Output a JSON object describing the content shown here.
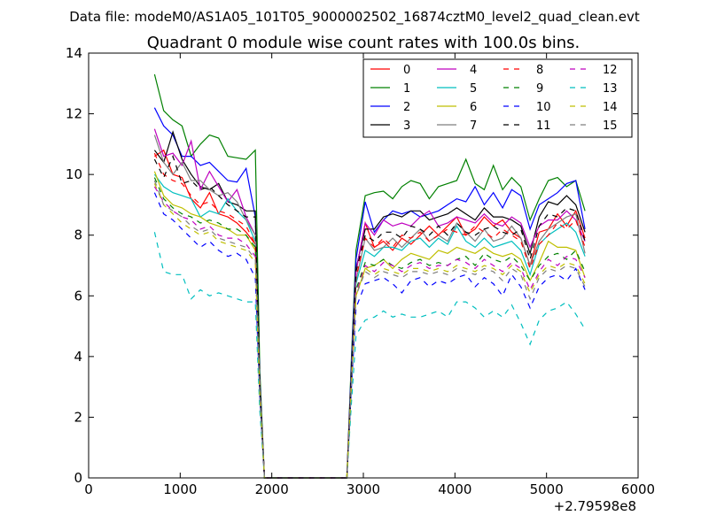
{
  "chart_data": {
    "type": "line",
    "suptitle": "Data file: modeM0/AS1A05_101T05_9000002502_16874cztM0_level2_quad_clean.evt",
    "title": "Quadrant 0 module wise count rates with 100.0s bins.",
    "xlabel": "",
    "ylabel": "",
    "xlim": [
      0,
      6000
    ],
    "ylim": [
      0,
      14
    ],
    "x_offset_label": "+2.79598e8",
    "xticks": [
      "0",
      "1000",
      "2000",
      "3000",
      "4000",
      "5000",
      "6000"
    ],
    "yticks": [
      "0",
      "2",
      "4",
      "6",
      "8",
      "10",
      "12",
      "14"
    ],
    "grid": false,
    "legend": "top-right",
    "x": [
      720,
      820,
      920,
      1020,
      1120,
      1220,
      1320,
      1420,
      1520,
      1620,
      1720,
      1820,
      1870,
      1920,
      2020,
      2120,
      2220,
      2320,
      2420,
      2520,
      2620,
      2720,
      2820,
      2870,
      2920,
      3020,
      3120,
      3220,
      3320,
      3420,
      3520,
      3620,
      3720,
      3820,
      3920,
      4020,
      4120,
      4220,
      4320,
      4420,
      4520,
      4620,
      4720,
      4820,
      4920,
      5020,
      5120,
      5220,
      5320,
      5420
    ],
    "series": [
      {
        "name": "0",
        "color": "#ff0000",
        "dash": "solid",
        "values": [
          10.6,
          10.8,
          10.0,
          9.9,
          9.2,
          8.9,
          9.4,
          8.7,
          8.6,
          8.4,
          8.1,
          7.7,
          3.0,
          0.0,
          0.0,
          0.0,
          0.0,
          0.0,
          0.0,
          0.0,
          0.0,
          0.0,
          0.0,
          3.5,
          6.8,
          8.4,
          7.6,
          7.8,
          7.5,
          7.9,
          7.7,
          8.0,
          8.3,
          8.0,
          8.3,
          8.6,
          8.0,
          8.2,
          8.6,
          8.3,
          8.5,
          8.1,
          7.9,
          7.0,
          8.1,
          8.2,
          8.7,
          8.3,
          8.8,
          7.9
        ]
      },
      {
        "name": "1",
        "color": "#008000",
        "dash": "solid",
        "values": [
          13.3,
          12.1,
          11.8,
          11.6,
          10.6,
          11.0,
          11.3,
          11.2,
          10.6,
          10.55,
          10.5,
          10.8,
          3.5,
          0.0,
          0.0,
          0.0,
          0.0,
          0.0,
          0.0,
          0.0,
          0.0,
          0.0,
          0.0,
          4.0,
          7.5,
          9.3,
          9.4,
          9.45,
          9.2,
          9.6,
          9.8,
          9.7,
          9.2,
          9.6,
          9.7,
          9.8,
          10.5,
          9.7,
          9.5,
          10.3,
          9.5,
          9.9,
          9.6,
          8.5,
          9.2,
          9.8,
          9.9,
          9.6,
          9.8,
          8.8
        ]
      },
      {
        "name": "2",
        "color": "#0000ff",
        "dash": "solid",
        "values": [
          12.2,
          11.6,
          11.3,
          10.6,
          10.6,
          10.3,
          10.4,
          10.1,
          9.8,
          9.75,
          10.2,
          8.6,
          3.2,
          0.0,
          0.0,
          0.0,
          0.0,
          0.0,
          0.0,
          0.0,
          0.0,
          0.0,
          0.0,
          3.8,
          7.2,
          9.1,
          8.1,
          8.5,
          8.8,
          8.7,
          8.8,
          8.6,
          8.7,
          8.8,
          9.0,
          9.2,
          9.1,
          9.6,
          9.0,
          9.4,
          8.9,
          9.5,
          9.3,
          8.2,
          9.0,
          9.2,
          9.4,
          9.7,
          9.8,
          8.2
        ]
      },
      {
        "name": "3",
        "color": "#000000",
        "dash": "solid",
        "values": [
          10.8,
          10.4,
          11.4,
          10.5,
          10.0,
          9.6,
          9.5,
          9.7,
          9.1,
          9.0,
          8.8,
          8.8,
          3.1,
          0.0,
          0.0,
          0.0,
          0.0,
          0.0,
          0.0,
          0.0,
          0.0,
          0.0,
          0.0,
          3.6,
          6.9,
          8.2,
          8.2,
          8.6,
          8.7,
          8.6,
          8.8,
          8.8,
          8.5,
          8.6,
          8.7,
          8.9,
          8.7,
          8.5,
          8.9,
          8.6,
          8.6,
          8.5,
          8.3,
          7.4,
          8.6,
          9.1,
          9.0,
          9.3,
          9.0,
          8.1
        ]
      },
      {
        "name": "4",
        "color": "#bf00bf",
        "dash": "solid",
        "values": [
          11.5,
          10.6,
          10.7,
          10.3,
          11.1,
          9.5,
          10.1,
          9.6,
          9.1,
          9.5,
          8.6,
          8.0,
          3.0,
          0.0,
          0.0,
          0.0,
          0.0,
          0.0,
          0.0,
          0.0,
          0.0,
          0.0,
          0.0,
          3.5,
          6.8,
          8.4,
          8.0,
          8.5,
          8.3,
          8.4,
          8.3,
          8.6,
          8.8,
          8.3,
          8.4,
          8.6,
          8.5,
          8.4,
          8.7,
          8.4,
          8.3,
          8.6,
          8.4,
          7.6,
          8.3,
          8.5,
          8.5,
          8.8,
          8.5,
          7.8
        ]
      },
      {
        "name": "5",
        "color": "#00bfbf",
        "dash": "solid",
        "values": [
          10.0,
          9.6,
          9.4,
          9.3,
          9.2,
          8.6,
          8.8,
          8.7,
          9.2,
          8.8,
          8.5,
          7.8,
          2.9,
          0.0,
          0.0,
          0.0,
          0.0,
          0.0,
          0.0,
          0.0,
          0.0,
          0.0,
          0.0,
          3.3,
          6.4,
          7.5,
          7.3,
          7.6,
          7.6,
          7.5,
          7.8,
          7.9,
          7.6,
          7.9,
          7.7,
          8.3,
          7.8,
          7.6,
          7.9,
          7.6,
          7.7,
          7.8,
          7.5,
          6.7,
          7.7,
          8.0,
          8.2,
          8.4,
          8.1,
          7.3
        ]
      },
      {
        "name": "6",
        "color": "#bfbf00",
        "dash": "solid",
        "values": [
          10.1,
          9.3,
          9.0,
          8.9,
          8.7,
          8.6,
          8.4,
          8.3,
          8.2,
          8.0,
          8.0,
          7.5,
          2.8,
          0.0,
          0.0,
          0.0,
          0.0,
          0.0,
          0.0,
          0.0,
          0.0,
          0.0,
          0.0,
          3.2,
          6.0,
          6.9,
          7.0,
          7.2,
          6.9,
          7.2,
          7.4,
          7.3,
          7.2,
          7.5,
          7.4,
          7.6,
          7.5,
          7.4,
          7.6,
          7.4,
          7.3,
          7.4,
          7.2,
          6.5,
          7.1,
          7.8,
          7.6,
          7.6,
          7.5,
          6.6
        ]
      },
      {
        "name": "7",
        "color": "#7f7f7f",
        "dash": "solid",
        "values": [
          11.3,
          10.4,
          10.0,
          10.4,
          9.8,
          9.8,
          9.5,
          9.3,
          9.4,
          9.1,
          8.5,
          8.0,
          3.0,
          0.0,
          0.0,
          0.0,
          0.0,
          0.0,
          0.0,
          0.0,
          0.0,
          0.0,
          0.0,
          3.4,
          6.5,
          7.9,
          7.5,
          7.6,
          7.9,
          7.6,
          7.9,
          8.2,
          7.8,
          8.0,
          7.8,
          8.4,
          8.1,
          7.8,
          8.2,
          7.8,
          7.9,
          8.3,
          7.9,
          7.0,
          7.8,
          8.2,
          8.4,
          8.6,
          8.7,
          7.4
        ]
      },
      {
        "name": "8",
        "color": "#ff0000",
        "dash": "dash",
        "values": [
          10.7,
          10.0,
          9.8,
          9.7,
          9.3,
          9.0,
          9.1,
          8.8,
          8.7,
          8.5,
          8.3,
          7.7,
          2.9,
          0.0,
          0.0,
          0.0,
          0.0,
          0.0,
          0.0,
          0.0,
          0.0,
          0.0,
          0.0,
          3.4,
          6.6,
          7.9,
          7.6,
          7.9,
          7.6,
          8.0,
          7.9,
          8.1,
          7.8,
          8.0,
          8.2,
          8.1,
          8.0,
          8.3,
          8.1,
          7.9,
          8.2,
          8.0,
          7.8,
          6.9,
          7.7,
          8.0,
          8.4,
          8.2,
          8.5,
          7.6
        ]
      },
      {
        "name": "9",
        "color": "#008000",
        "dash": "dash",
        "values": [
          9.9,
          9.2,
          8.9,
          8.7,
          8.6,
          8.4,
          8.5,
          8.4,
          8.2,
          8.2,
          8.0,
          7.6,
          2.8,
          0.0,
          0.0,
          0.0,
          0.0,
          0.0,
          0.0,
          0.0,
          0.0,
          0.0,
          0.0,
          3.2,
          6.2,
          7.1,
          7.0,
          7.2,
          7.0,
          6.9,
          7.1,
          7.2,
          7.0,
          7.1,
          7.0,
          7.2,
          7.3,
          7.0,
          7.4,
          7.2,
          7.1,
          7.3,
          7.0,
          6.5,
          7.0,
          7.3,
          7.4,
          7.2,
          7.5,
          6.8
        ]
      },
      {
        "name": "10",
        "color": "#0000ff",
        "dash": "dash",
        "values": [
          9.4,
          8.7,
          8.5,
          8.2,
          7.9,
          7.6,
          7.8,
          7.5,
          7.3,
          7.4,
          7.2,
          6.6,
          2.6,
          0.0,
          0.0,
          0.0,
          0.0,
          0.0,
          0.0,
          0.0,
          0.0,
          0.0,
          0.0,
          3.0,
          5.6,
          6.4,
          6.5,
          6.6,
          6.4,
          6.1,
          6.5,
          6.6,
          6.3,
          6.5,
          6.4,
          6.6,
          6.7,
          6.3,
          6.6,
          6.4,
          6.0,
          6.7,
          6.3,
          5.6,
          6.3,
          6.6,
          6.7,
          6.5,
          6.9,
          6.2
        ]
      },
      {
        "name": "11",
        "color": "#000000",
        "dash": "dash",
        "values": [
          10.5,
          9.9,
          10.6,
          9.7,
          9.8,
          9.5,
          9.6,
          9.3,
          9.0,
          8.8,
          8.6,
          8.6,
          3.0,
          0.0,
          0.0,
          0.0,
          0.0,
          0.0,
          0.0,
          0.0,
          0.0,
          0.0,
          0.0,
          3.5,
          6.8,
          8.0,
          7.8,
          8.1,
          8.1,
          7.9,
          8.3,
          8.2,
          8.0,
          8.3,
          8.0,
          8.4,
          8.1,
          8.0,
          8.2,
          8.3,
          8.1,
          8.0,
          8.2,
          7.2,
          8.3,
          8.7,
          8.6,
          8.9,
          8.8,
          7.8
        ]
      },
      {
        "name": "12",
        "color": "#bf00bf",
        "dash": "dash",
        "values": [
          9.6,
          9.1,
          8.8,
          8.6,
          8.5,
          8.2,
          8.3,
          8.0,
          7.9,
          7.9,
          7.7,
          7.3,
          2.7,
          0.0,
          0.0,
          0.0,
          0.0,
          0.0,
          0.0,
          0.0,
          0.0,
          0.0,
          0.0,
          3.1,
          6.1,
          7.0,
          6.8,
          7.1,
          7.0,
          6.8,
          7.0,
          7.1,
          6.9,
          7.0,
          7.0,
          7.2,
          7.1,
          6.9,
          7.2,
          7.0,
          6.8,
          7.1,
          6.9,
          6.2,
          6.8,
          7.2,
          7.0,
          7.3,
          7.2,
          6.6
        ]
      },
      {
        "name": "13",
        "color": "#00bfbf",
        "dash": "dash",
        "values": [
          8.1,
          6.8,
          6.7,
          6.7,
          5.9,
          6.2,
          6.0,
          6.1,
          6.0,
          5.9,
          5.8,
          5.8,
          2.2,
          0.0,
          0.0,
          0.0,
          0.0,
          0.0,
          0.0,
          0.0,
          0.0,
          0.0,
          0.0,
          2.5,
          4.7,
          5.2,
          5.3,
          5.5,
          5.3,
          5.4,
          5.3,
          5.3,
          5.4,
          5.5,
          5.3,
          5.8,
          5.8,
          5.6,
          5.3,
          5.5,
          5.3,
          5.7,
          5.1,
          4.4,
          5.2,
          5.5,
          5.6,
          5.8,
          5.4,
          4.9
        ]
      },
      {
        "name": "14",
        "color": "#bfbf00",
        "dash": "dash",
        "values": [
          9.7,
          9.0,
          8.7,
          8.4,
          8.2,
          8.0,
          8.1,
          7.8,
          7.7,
          7.6,
          7.5,
          7.1,
          2.7,
          0.0,
          0.0,
          0.0,
          0.0,
          0.0,
          0.0,
          0.0,
          0.0,
          0.0,
          0.0,
          3.1,
          6.0,
          6.9,
          6.7,
          6.9,
          6.8,
          6.7,
          6.9,
          6.9,
          6.8,
          6.9,
          6.8,
          7.0,
          6.9,
          6.8,
          7.0,
          6.9,
          6.7,
          7.0,
          6.8,
          6.1,
          6.7,
          7.0,
          6.9,
          7.1,
          7.0,
          6.4
        ]
      },
      {
        "name": "15",
        "color": "#7f7f7f",
        "dash": "dash",
        "values": [
          9.8,
          9.0,
          8.8,
          8.6,
          8.3,
          8.1,
          8.2,
          7.9,
          7.8,
          7.7,
          7.6,
          7.2,
          2.7,
          0.0,
          0.0,
          0.0,
          0.0,
          0.0,
          0.0,
          0.0,
          0.0,
          0.0,
          0.0,
          3.1,
          6.0,
          6.8,
          6.6,
          6.8,
          6.7,
          6.6,
          6.8,
          6.8,
          6.7,
          6.8,
          6.7,
          6.9,
          6.8,
          6.7,
          6.9,
          6.8,
          6.5,
          6.9,
          6.7,
          5.9,
          6.6,
          6.9,
          6.8,
          7.0,
          6.9,
          6.3
        ]
      }
    ]
  }
}
